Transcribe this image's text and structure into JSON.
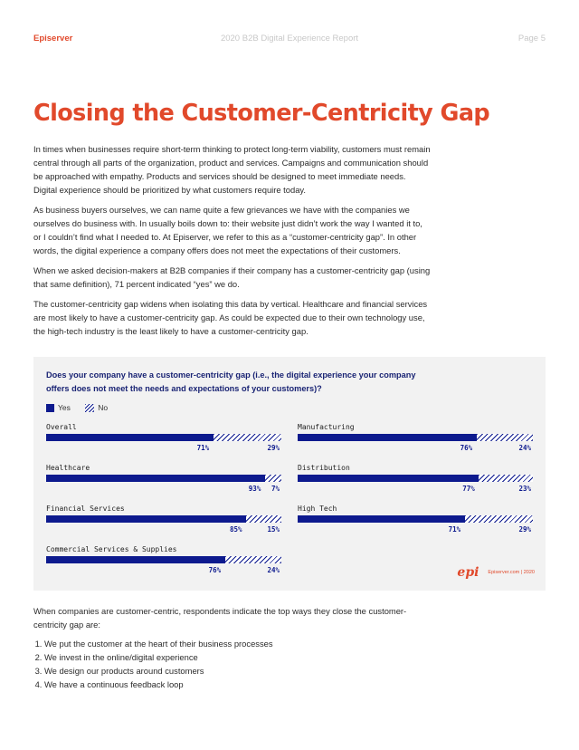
{
  "header": {
    "brand": "Episerver",
    "report": "2020 B2B Digital Experience Report",
    "page": "Page 5"
  },
  "title": "Closing the Customer-Centricity Gap",
  "paragraphs": [
    "In times when businesses require short-term thinking to protect long-term viability, customers must remain central through all parts of the organization, product and services. Campaigns and communication should be approached with empathy. Products and services should be designed to meet immediate needs. Digital experience should be prioritized by what customers require today.",
    "As business buyers ourselves, we can name quite a few grievances we have with the companies we ourselves do business with. In usually boils down to: their website just didn’t work the way I wanted it to, or I couldn’t find what I needed to. At Episerver, we refer to this as a “customer-centricity gap”. In other words, the digital experience a company offers does not meet the expectations of their customers.",
    "When we asked decision-makers at B2B companies if their company has a customer-centricity gap (using that same definition), 71 percent indicated “yes” we do.",
    "The customer-centricity gap widens when isolating this data by vertical. Healthcare and financial services are most likely to have a customer-centricity gap. As could be expected due to their own technology use, the high-tech industry is the least likely to have a customer-centricity gap."
  ],
  "chart_data": {
    "type": "bar",
    "title": "Does your company have a customer-centricity gap (i.e., the digital experience your company offers does not meet the needs and expectations of your customers)?",
    "legend": [
      "Yes",
      "No"
    ],
    "categories": [
      "Overall",
      "Healthcare",
      "Financial Services",
      "Commercial Services & Supplies",
      "Manufacturing",
      "Distribution",
      "High Tech"
    ],
    "series": [
      {
        "name": "Yes",
        "values": [
          71,
          93,
          85,
          76,
          76,
          77,
          71
        ]
      },
      {
        "name": "No",
        "values": [
          29,
          7,
          15,
          24,
          24,
          23,
          29
        ]
      }
    ],
    "labels_yes": [
      "71%",
      "93%",
      "85%",
      "76%",
      "76%",
      "77%",
      "71%"
    ],
    "labels_no": [
      "29%",
      "7%",
      "15%",
      "24%",
      "24%",
      "23%",
      "29%"
    ],
    "colors": {
      "yes": "#0d1a8e",
      "no": "#0d1a8e"
    }
  },
  "chart_footer": {
    "logo": "epi",
    "source": "Episerver.com | 2020"
  },
  "closing": {
    "intro": "When companies are customer-centric, respondents indicate the top ways they close the customer-centricity gap are:",
    "items": [
      "We put the customer at the heart of their business processes",
      "We invest in the online/digital experience",
      "We design our products around customers",
      "We have a continuous feedback loop"
    ]
  }
}
